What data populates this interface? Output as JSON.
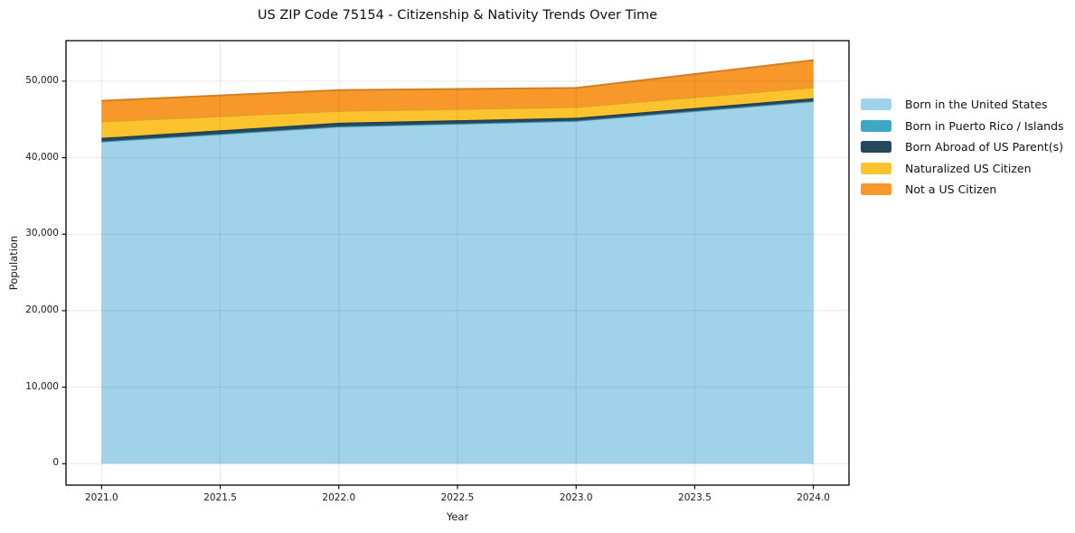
{
  "chart_data": {
    "type": "area",
    "stacked": true,
    "title": "US ZIP Code 75154 - Citizenship & Nativity Trends Over Time",
    "xlabel": "Year",
    "ylabel": "Population",
    "x": [
      2021,
      2022,
      2023,
      2024
    ],
    "series": [
      {
        "name": "Born in the United States",
        "color": "#a0d2e9",
        "values": [
          42100,
          44050,
          44800,
          47350
        ]
      },
      {
        "name": "Born in Puerto Rico / Islands",
        "color": "#3ea8c4",
        "values": [
          40,
          40,
          40,
          60
        ]
      },
      {
        "name": "Born Abroad of US Parent(s)",
        "color": "#25485d",
        "values": [
          450,
          480,
          380,
          360
        ]
      },
      {
        "name": "Naturalized US Citizen",
        "color": "#fcc32e",
        "values": [
          2150,
          1550,
          1400,
          1430
        ]
      },
      {
        "name": "Not a US Citizen",
        "color": "#f8982a",
        "values": [
          2700,
          2720,
          2500,
          3550
        ]
      }
    ],
    "totals": [
      47440,
      48840,
      49120,
      52750
    ],
    "xtick_labels": [
      "2021.0",
      "2021.5",
      "2022.0",
      "2022.5",
      "2023.0",
      "2023.5",
      "2024.0"
    ],
    "xtick_values": [
      2021,
      2021.5,
      2022,
      2022.5,
      2023,
      2023.5,
      2024
    ],
    "ytick_labels": [
      "0",
      "10,000",
      "20,000",
      "30,000",
      "40,000",
      "50,000"
    ],
    "ytick_values": [
      0,
      10000,
      20000,
      30000,
      40000,
      50000
    ],
    "xlim": [
      2020.85,
      2024.15
    ],
    "ylim": [
      -2800,
      55300
    ],
    "grid": true,
    "grid_color": "rgba(0,0,0,0.09)",
    "legend_position": "right"
  }
}
